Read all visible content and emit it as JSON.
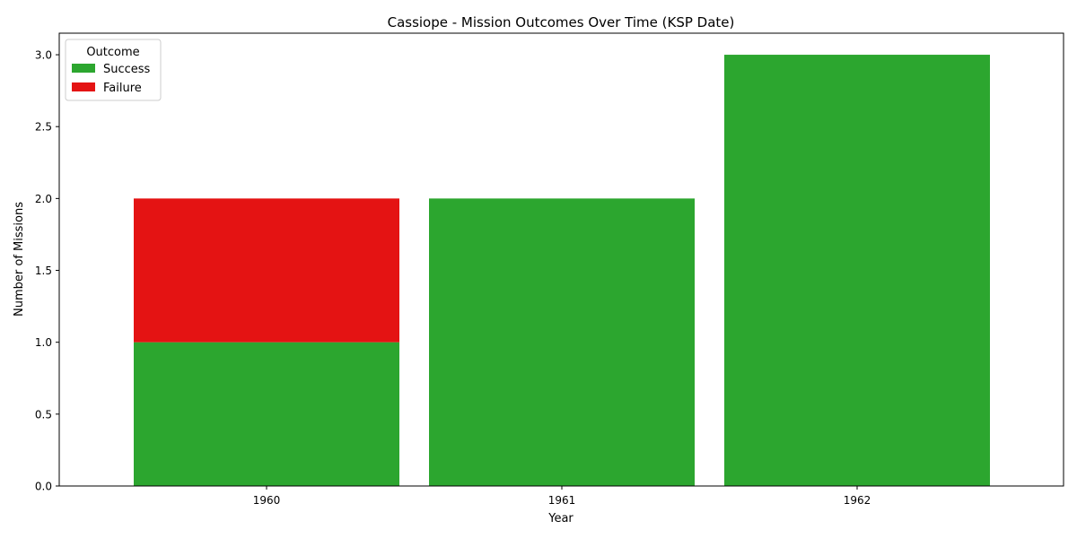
{
  "chart_data": {
    "type": "bar",
    "stacked": true,
    "title": "Cassiope - Mission Outcomes Over Time (KSP Date)",
    "xlabel": "Year",
    "ylabel": "Number of Missions",
    "categories": [
      "1960",
      "1961",
      "1962"
    ],
    "series": [
      {
        "name": "Success",
        "color": "#2ca62f",
        "values": [
          1,
          2,
          3
        ]
      },
      {
        "name": "Failure",
        "color": "#e41313",
        "values": [
          1,
          0,
          0
        ]
      }
    ],
    "ylim": [
      0,
      3.15
    ],
    "yticks": [
      "0.0",
      "0.5",
      "1.0",
      "1.5",
      "2.0",
      "2.5",
      "3.0"
    ],
    "grid": false,
    "legend": {
      "title": "Outcome",
      "placement": "top-left"
    }
  }
}
